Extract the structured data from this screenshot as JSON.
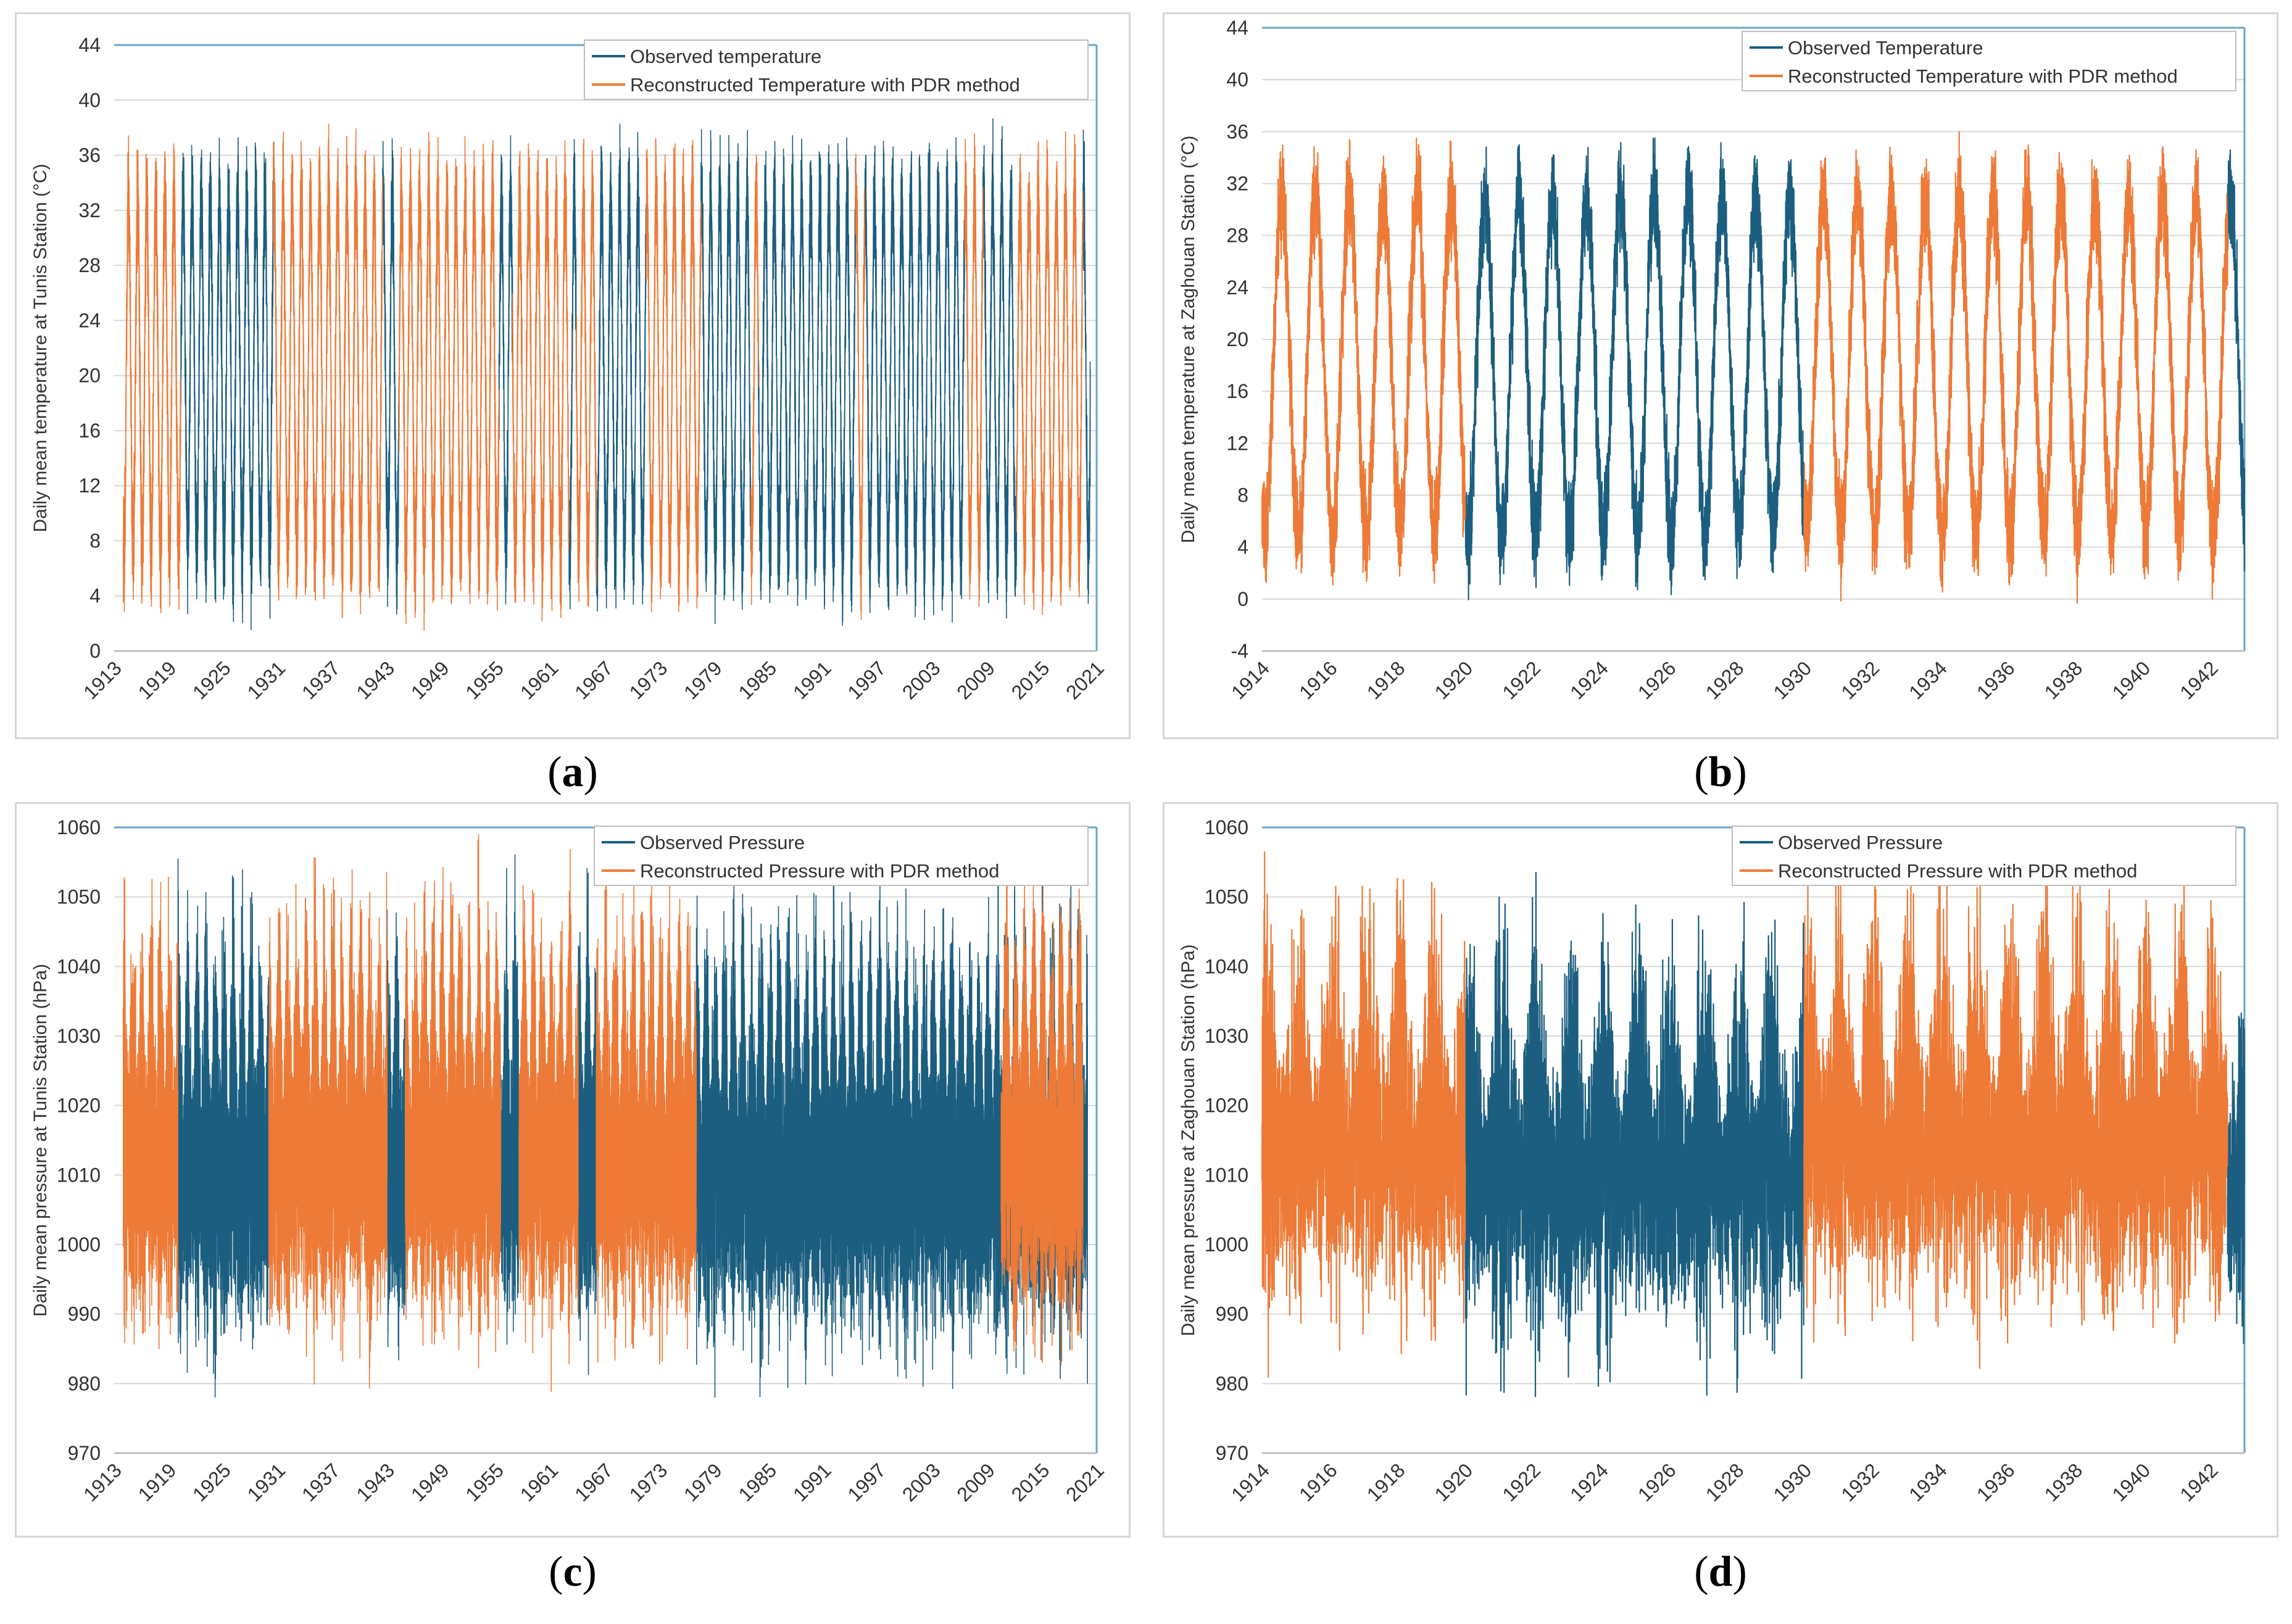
{
  "colors": {
    "observed": "#1b5e7f",
    "reconstructed": "#ed7a37",
    "axis": "#6aa6c4",
    "grid": "#d9d9d9",
    "text": "#333333"
  },
  "chart_data": [
    {
      "panel": "a",
      "type": "line",
      "ylabel": "Daily mean temperature at Tunis Station (°C)",
      "xlabel": "",
      "ylim": [
        0,
        44
      ],
      "yticks": [
        0,
        4,
        8,
        12,
        16,
        20,
        24,
        28,
        32,
        36,
        40,
        44
      ],
      "xlim": [
        1913,
        2021
      ],
      "xticks": [
        "1913",
        "1919",
        "1925",
        "1931",
        "1937",
        "1943",
        "1949",
        "1955",
        "1961",
        "1967",
        "1973",
        "1979",
        "1985",
        "1991",
        "1997",
        "2003",
        "2009",
        "2015",
        "2021"
      ],
      "legend": "top-right",
      "series": [
        {
          "name": "Observed temperature",
          "kind": "obs",
          "segments": [
            [
              1920.3,
              1930.5
            ],
            [
              1942.5,
              1944.3
            ],
            [
              1955.3,
              1956.8
            ],
            [
              1963.0,
              1963.8
            ],
            [
              1966.0,
              1971.5
            ],
            [
              1977.5,
              1983.0
            ],
            [
              1983.8,
              1994.5
            ],
            [
              1995.5,
              2006.5
            ],
            [
              2008.5,
              2012.2
            ],
            [
              2019.5,
              2020.3
            ]
          ],
          "envelope": {
            "base": 20,
            "amp": 13,
            "noise": 3
          }
        },
        {
          "name": "Reconstructed Temperature with PDR method",
          "kind": "rec",
          "segments": [
            [
              1914.0,
              1920.3
            ],
            [
              1930.5,
              1942.5
            ],
            [
              1944.3,
              1955.3
            ],
            [
              1956.8,
              1963.0
            ],
            [
              1963.8,
              1966.0
            ],
            [
              1971.5,
              1977.5
            ],
            [
              1983.0,
              1983.8
            ],
            [
              1994.5,
              1995.5
            ],
            [
              2006.5,
              2008.5
            ],
            [
              2012.2,
              2019.5
            ]
          ],
          "envelope": {
            "base": 20,
            "amp": 13,
            "noise": 3
          }
        }
      ]
    },
    {
      "panel": "b",
      "type": "line",
      "ylabel": "Daily mean temperature at Zaghouan Station (°C)",
      "xlabel": "",
      "ylim": [
        -4,
        44
      ],
      "yticks": [
        -4,
        0,
        4,
        8,
        12,
        16,
        20,
        24,
        28,
        32,
        36,
        40,
        44
      ],
      "xlim": [
        1914,
        1943
      ],
      "xticks": [
        "1914",
        "1916",
        "1918",
        "1920",
        "1922",
        "1924",
        "1926",
        "1928",
        "1930",
        "1932",
        "1934",
        "1936",
        "1938",
        "1940",
        "1942"
      ],
      "legend": "top-right",
      "series": [
        {
          "name": "Observed Temperature",
          "kind": "obs",
          "segments": [
            [
              1920.0,
              1930.0
            ],
            [
              1942.5,
              1943.0
            ]
          ],
          "envelope": {
            "base": 18,
            "amp": 13,
            "noise": 3
          }
        },
        {
          "name": "Reconstructed Temperature with PDR method",
          "kind": "rec",
          "segments": [
            [
              1914.0,
              1920.0
            ],
            [
              1930.0,
              1942.5
            ]
          ],
          "envelope": {
            "base": 18,
            "amp": 13,
            "noise": 3
          }
        }
      ]
    },
    {
      "panel": "c",
      "type": "line",
      "ylabel": "Daily mean pressure at Tunis Station (hPa)",
      "xlabel": "",
      "ylim": [
        970,
        1060
      ],
      "yticks": [
        970,
        980,
        990,
        1000,
        1010,
        1020,
        1030,
        1040,
        1050,
        1060
      ],
      "xlim": [
        1913,
        2021
      ],
      "xticks": [
        "1913",
        "1919",
        "1925",
        "1931",
        "1937",
        "1943",
        "1949",
        "1955",
        "1961",
        "1967",
        "1973",
        "1979",
        "1985",
        "1991",
        "1997",
        "2003",
        "2009",
        "2015",
        "2021"
      ],
      "legend": "top-right",
      "series": [
        {
          "name": "Observed Pressure",
          "kind": "obs",
          "segments": [
            [
              1920.0,
              1930.0
            ],
            [
              1943.0,
              1945.0
            ],
            [
              1955.5,
              1957.5
            ],
            [
              1964.0,
              1966.0
            ],
            [
              1977.0,
              2020.0
            ]
          ],
          "envelope": {
            "base": 1013,
            "amp": 7,
            "noise": 9
          }
        },
        {
          "name": "Reconstructed Pressure with PDR method",
          "kind": "rec",
          "segments": [
            [
              1914.0,
              1920.0
            ],
            [
              1930.0,
              1943.0
            ],
            [
              1945.0,
              1955.5
            ],
            [
              1957.5,
              1964.0
            ],
            [
              1966.0,
              1977.0
            ],
            [
              2010.5,
              2019.5
            ]
          ],
          "envelope": {
            "base": 1015,
            "amp": 7,
            "noise": 9
          }
        }
      ]
    },
    {
      "panel": "d",
      "type": "line",
      "ylabel": "Daily mean pressure at Zaghouan Station (hPa)",
      "xlabel": "",
      "ylim": [
        970,
        1060
      ],
      "yticks": [
        970,
        980,
        990,
        1000,
        1010,
        1020,
        1030,
        1040,
        1050,
        1060
      ],
      "xlim": [
        1914,
        1943
      ],
      "xticks": [
        "1914",
        "1916",
        "1918",
        "1920",
        "1922",
        "1924",
        "1926",
        "1928",
        "1930",
        "1932",
        "1934",
        "1936",
        "1938",
        "1940",
        "1942"
      ],
      "legend": "top-right",
      "series": [
        {
          "name": "Observed Pressure",
          "kind": "obs",
          "segments": [
            [
              1920.0,
              1930.0
            ],
            [
              1942.5,
              1943.0
            ]
          ],
          "envelope": {
            "base": 1012,
            "amp": 6,
            "noise": 9
          }
        },
        {
          "name": "Reconstructed Pressure with PDR method",
          "kind": "rec",
          "segments": [
            [
              1914.0,
              1920.0
            ],
            [
              1930.0,
              1942.5
            ]
          ],
          "envelope": {
            "base": 1016,
            "amp": 6,
            "noise": 9
          }
        }
      ]
    }
  ],
  "captions": {
    "a": "a",
    "b": "b",
    "c": "c",
    "d": "d"
  }
}
